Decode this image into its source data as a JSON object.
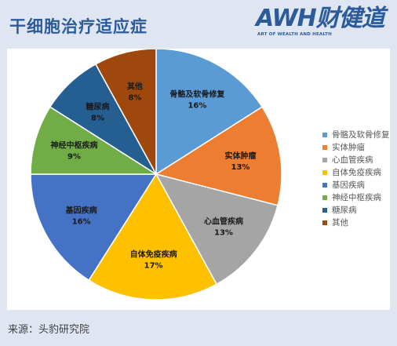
{
  "header": {
    "title": "干细胞治疗适应症",
    "logo_main": "AWH财健道",
    "logo_sub": "ART OF WEALTH AND HEALTH"
  },
  "source": "来源：头豹研究院",
  "colors": {
    "accent": "#2c5b9a",
    "background": "#dfe6f2"
  },
  "chart_data": {
    "type": "pie",
    "title": "",
    "legend_position": "right",
    "slices": [
      {
        "label": "骨骼及软骨修复",
        "value": 16,
        "display": "16%",
        "color": "#5b9bd5"
      },
      {
        "label": "实体肿瘤",
        "value": 13,
        "display": "13%",
        "color": "#ed7d31"
      },
      {
        "label": "心血管疾病",
        "value": 13,
        "display": "13%",
        "color": "#a5a5a5"
      },
      {
        "label": "自体免疫疾病",
        "value": 17,
        "display": "17%",
        "color": "#ffc000"
      },
      {
        "label": "基因疾病",
        "value": 16,
        "display": "16%",
        "color": "#4472c4"
      },
      {
        "label": "神经中枢疾病",
        "value": 9,
        "display": "9%",
        "color": "#70ad47"
      },
      {
        "label": "糖尿病",
        "value": 8,
        "display": "8%",
        "color": "#255e91"
      },
      {
        "label": "其他",
        "value": 8,
        "display": "8%",
        "color": "#9e480e"
      }
    ]
  }
}
